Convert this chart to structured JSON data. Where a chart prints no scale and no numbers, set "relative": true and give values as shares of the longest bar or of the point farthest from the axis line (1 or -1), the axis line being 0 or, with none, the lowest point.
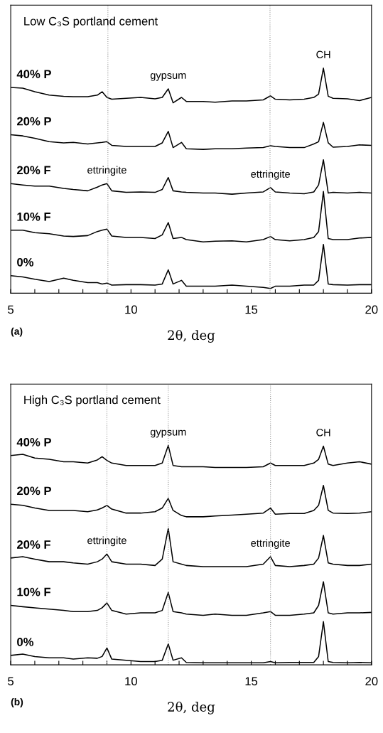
{
  "chart_data": [
    {
      "type": "line",
      "relative": true,
      "title": "Low C₃S portland cement",
      "xlabel": "2θ, deg",
      "xlim": [
        5,
        20
      ],
      "xticks": [
        5,
        {
          "value": 6,
          "label": null
        },
        {
          "value": 7,
          "label": null
        },
        {
          "value": 8,
          "label": null
        },
        {
          "value": 9,
          "label": null
        },
        10,
        {
          "value": 11,
          "label": null
        },
        {
          "value": 12,
          "label": null
        },
        {
          "value": 13,
          "label": null
        },
        {
          "value": 14,
          "label": null
        },
        15,
        {
          "value": 16,
          "label": null
        },
        {
          "value": 17,
          "label": null
        },
        {
          "value": 18,
          "label": null
        },
        {
          "value": 19,
          "label": null
        },
        20
      ],
      "tick_labels": "x",
      "x": [
        5.0,
        5.5,
        6.0,
        6.6,
        7.2,
        7.6,
        8.2,
        8.6,
        8.8,
        9.0,
        9.2,
        9.8,
        10.4,
        11.0,
        11.3,
        11.55,
        11.75,
        12.1,
        12.3,
        13.0,
        13.5,
        14.2,
        14.8,
        15.5,
        15.8,
        16.0,
        16.6,
        17.2,
        17.6,
        17.8,
        18.0,
        18.2,
        18.4,
        19.0,
        19.5,
        20.0
      ],
      "series": [
        {
          "name": "40% P",
          "color": "#000000",
          "values": [
            0.914,
            0.911,
            0.895,
            0.88,
            0.875,
            0.873,
            0.873,
            0.88,
            0.895,
            0.87,
            0.862,
            0.866,
            0.87,
            0.864,
            0.87,
            0.908,
            0.846,
            0.87,
            0.852,
            0.852,
            0.849,
            0.854,
            0.854,
            0.859,
            0.877,
            0.862,
            0.859,
            0.862,
            0.87,
            0.885,
            1.0,
            0.875,
            0.866,
            0.864,
            0.856,
            0.87
          ]
        },
        {
          "name": "20% P",
          "color": "#000000",
          "values": [
            0.704,
            0.699,
            0.688,
            0.673,
            0.668,
            0.67,
            0.663,
            0.668,
            0.67,
            0.673,
            0.657,
            0.652,
            0.652,
            0.652,
            0.668,
            0.719,
            0.647,
            0.67,
            0.642,
            0.639,
            0.642,
            0.642,
            0.645,
            0.647,
            0.655,
            0.652,
            0.647,
            0.647,
            0.663,
            0.673,
            0.759,
            0.668,
            0.649,
            0.652,
            0.659,
            0.657
          ]
        },
        {
          "name": "20% F",
          "color": "#000000",
          "values": [
            0.487,
            0.481,
            0.476,
            0.476,
            0.466,
            0.461,
            0.455,
            0.471,
            0.481,
            0.487,
            0.455,
            0.448,
            0.45,
            0.448,
            0.461,
            0.514,
            0.455,
            0.45,
            0.448,
            0.445,
            0.445,
            0.44,
            0.445,
            0.45,
            0.469,
            0.45,
            0.445,
            0.442,
            0.45,
            0.481,
            0.593,
            0.445,
            0.448,
            0.445,
            0.448,
            0.445
          ]
        },
        {
          "name": "10% F",
          "color": "#000000",
          "values": [
            0.28,
            0.28,
            0.269,
            0.264,
            0.254,
            0.252,
            0.256,
            0.274,
            0.28,
            0.285,
            0.254,
            0.248,
            0.248,
            0.243,
            0.259,
            0.314,
            0.243,
            0.248,
            0.238,
            0.228,
            0.231,
            0.233,
            0.228,
            0.238,
            0.252,
            0.238,
            0.233,
            0.238,
            0.248,
            0.274,
            0.452,
            0.243,
            0.238,
            0.238,
            0.245,
            0.248
          ]
        },
        {
          "name": "0%",
          "color": "#000000",
          "values": [
            0.078,
            0.072,
            0.062,
            0.052,
            0.067,
            0.057,
            0.047,
            0.047,
            0.041,
            0.045,
            0.036,
            0.038,
            0.038,
            0.036,
            0.041,
            0.104,
            0.041,
            0.057,
            0.031,
            0.031,
            0.031,
            0.036,
            0.031,
            0.026,
            0.021,
            0.031,
            0.031,
            0.036,
            0.036,
            0.057,
            0.217,
            0.041,
            0.038,
            0.036,
            0.038,
            0.038
          ]
        }
      ],
      "ref_lines": [
        {
          "axis": "x",
          "value": 9.04,
          "color": "#999999",
          "line_style": "dotted"
        },
        {
          "axis": "x",
          "value": 15.78,
          "color": "#999999",
          "line_style": "dotted"
        }
      ],
      "annotations": [
        {
          "text": "gypsum",
          "x": 11.55,
          "y": 0.908
        },
        {
          "text": "CH",
          "x": 18.0,
          "y": 1.0
        },
        {
          "text": "ettringite",
          "x": 9.0,
          "y": 0.487
        },
        {
          "text": "ettringite",
          "x": 15.8,
          "y": 0.469
        },
        "(a)"
      ]
    },
    {
      "type": "line",
      "relative": true,
      "title": "High C₃S portland cement",
      "xlabel": "2θ, deg",
      "xlim": [
        5,
        20
      ],
      "xticks": [
        5,
        {
          "value": 6,
          "label": null
        },
        {
          "value": 7,
          "label": null
        },
        {
          "value": 8,
          "label": null
        },
        {
          "value": 9,
          "label": null
        },
        10,
        {
          "value": 11,
          "label": null
        },
        {
          "value": 12,
          "label": null
        },
        {
          "value": 13,
          "label": null
        },
        {
          "value": 14,
          "label": null
        },
        15,
        {
          "value": 16,
          "label": null
        },
        {
          "value": 17,
          "label": null
        },
        {
          "value": 18,
          "label": null
        },
        {
          "value": 19,
          "label": null
        },
        20
      ],
      "tick_labels": "x",
      "x": [
        5.0,
        5.5,
        6.0,
        6.6,
        7.2,
        7.6,
        8.2,
        8.6,
        8.8,
        9.0,
        9.2,
        9.8,
        10.4,
        11.0,
        11.3,
        11.55,
        11.75,
        12.1,
        12.3,
        13.0,
        13.5,
        14.2,
        14.8,
        15.5,
        15.8,
        16.0,
        16.6,
        17.2,
        17.6,
        17.8,
        18.0,
        18.2,
        18.4,
        19.0,
        19.5,
        20.0
      ],
      "series": [
        {
          "name": "40% P",
          "color": "#000000",
          "values": [
            0.954,
            0.96,
            0.943,
            0.937,
            0.926,
            0.926,
            0.92,
            0.934,
            0.949,
            0.932,
            0.92,
            0.909,
            0.909,
            0.909,
            0.92,
            1.0,
            0.909,
            0.903,
            0.903,
            0.903,
            0.9,
            0.9,
            0.9,
            0.903,
            0.92,
            0.909,
            0.909,
            0.909,
            0.92,
            0.937,
            0.997,
            0.915,
            0.909,
            0.92,
            0.926,
            0.915
          ]
        },
        {
          "name": "20% P",
          "color": "#000000",
          "values": [
            0.732,
            0.727,
            0.715,
            0.704,
            0.704,
            0.704,
            0.698,
            0.706,
            0.715,
            0.727,
            0.71,
            0.692,
            0.692,
            0.698,
            0.715,
            0.759,
            0.704,
            0.681,
            0.675,
            0.675,
            0.679,
            0.683,
            0.687,
            0.692,
            0.715,
            0.687,
            0.69,
            0.69,
            0.704,
            0.727,
            0.818,
            0.704,
            0.692,
            0.69,
            0.692,
            0.698
          ]
        },
        {
          "name": "20% F",
          "color": "#000000",
          "values": [
            0.487,
            0.493,
            0.482,
            0.47,
            0.47,
            0.465,
            0.459,
            0.47,
            0.482,
            0.505,
            0.47,
            0.459,
            0.459,
            0.453,
            0.482,
            0.622,
            0.47,
            0.459,
            0.453,
            0.448,
            0.448,
            0.448,
            0.448,
            0.459,
            0.493,
            0.453,
            0.448,
            0.453,
            0.459,
            0.487,
            0.59,
            0.465,
            0.459,
            0.453,
            0.453,
            0.459
          ]
        },
        {
          "name": "10% F",
          "color": "#000000",
          "values": [
            0.271,
            0.265,
            0.26,
            0.254,
            0.248,
            0.243,
            0.243,
            0.248,
            0.26,
            0.282,
            0.248,
            0.231,
            0.237,
            0.237,
            0.248,
            0.33,
            0.243,
            0.237,
            0.231,
            0.226,
            0.231,
            0.226,
            0.226,
            0.237,
            0.243,
            0.226,
            0.226,
            0.231,
            0.237,
            0.271,
            0.379,
            0.237,
            0.231,
            0.237,
            0.237,
            0.239
          ]
        },
        {
          "name": "0%",
          "color": "#000000",
          "values": [
            0.043,
            0.049,
            0.038,
            0.032,
            0.032,
            0.026,
            0.032,
            0.03,
            0.038,
            0.077,
            0.026,
            0.021,
            0.015,
            0.015,
            0.021,
            0.095,
            0.021,
            0.032,
            0.011,
            0.009,
            0.009,
            0.009,
            0.009,
            0.009,
            0.015,
            0.009,
            0.011,
            0.011,
            0.011,
            0.038,
            0.197,
            0.015,
            0.011,
            0.009,
            0.011,
            0.009
          ]
        }
      ],
      "ref_lines": [
        {
          "axis": "x",
          "value": 9.0,
          "color": "#999999",
          "line_style": "dotted"
        },
        {
          "axis": "x",
          "value": 11.55,
          "color": "#999999",
          "line_style": "dotted"
        },
        {
          "axis": "x",
          "value": 15.8,
          "color": "#999999",
          "line_style": "dotted"
        }
      ],
      "annotations": [
        {
          "text": "gypsum",
          "x": 11.55,
          "y": 1.0
        },
        {
          "text": "CH",
          "x": 18.0,
          "y": 0.997
        },
        {
          "text": "ettringite",
          "x": 9.0,
          "y": 0.505
        },
        {
          "text": "ettringite",
          "x": 15.8,
          "y": 0.493
        },
        "(b)"
      ]
    }
  ]
}
